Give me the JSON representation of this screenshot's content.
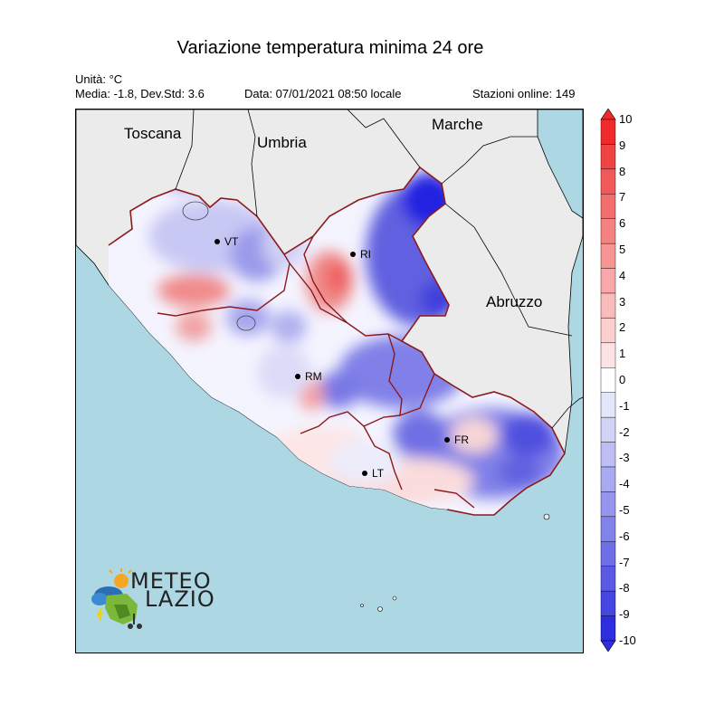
{
  "title": "Variazione temperatura minima 24 ore",
  "unit": "Unità: °C",
  "stats": "Media: -1.8, Dev.Std: 3.6",
  "date": "Data: 07/01/2021 08:50 locale",
  "stations": "Stazioni online: 149",
  "regions": {
    "toscana": "Toscana",
    "umbria": "Umbria",
    "marche": "Marche",
    "abruzzo": "Abruzzo"
  },
  "cities": {
    "vt": "VT",
    "ri": "RI",
    "rm": "RM",
    "fr": "FR",
    "lt": "LT"
  },
  "colorbar": {
    "ticks": [
      "10",
      "9",
      "8",
      "7",
      "6",
      "5",
      "4",
      "3",
      "2",
      "1",
      "0",
      "-1",
      "-2",
      "-3",
      "-4",
      "-5",
      "-6",
      "-7",
      "-8",
      "-9",
      "-10"
    ],
    "colors_top_to_bottom": [
      "#f02a2a",
      "#f04444",
      "#f25a5a",
      "#f36e6e",
      "#f58282",
      "#f79595",
      "#f8a8a8",
      "#fabbbb",
      "#fccfcf",
      "#fde3e3",
      "#ffffff",
      "#e6e6fa",
      "#d2d2f7",
      "#bebef4",
      "#aaaaf1",
      "#9696ee",
      "#8282eb",
      "#6e6ee8",
      "#5a5ae5",
      "#4646e2",
      "#2e2ee0"
    ]
  },
  "logo": {
    "line1": "METEO",
    "line2": "LAZIO"
  },
  "colors": {
    "sea": "#add8e3",
    "land_outside": "#ebebeb",
    "positive": "#f06060",
    "negative": "#3030e8",
    "border": "#8b1a1a"
  }
}
